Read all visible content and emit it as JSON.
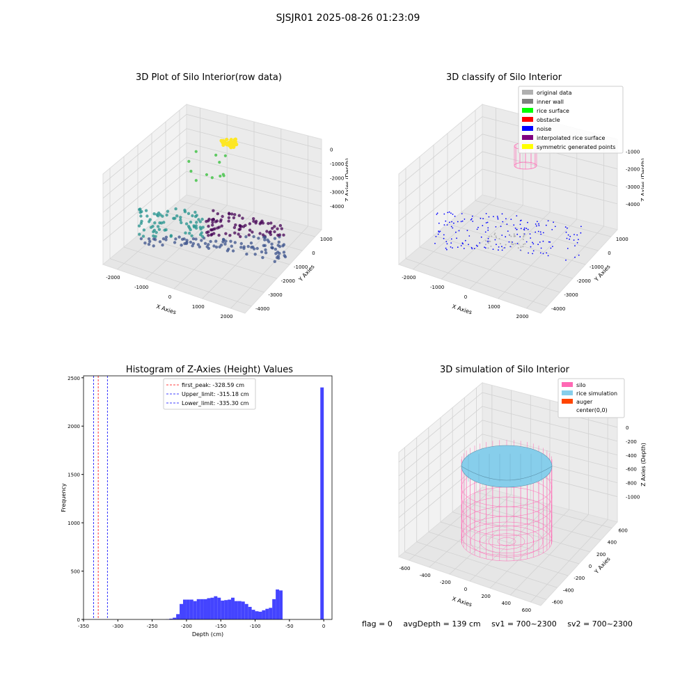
{
  "figure": {
    "suptitle": "SJSJR01 2025-08-26 01:23:09"
  },
  "chart_data": [
    {
      "type": "scatter3d",
      "title": "3D Plot of Silo Interior(row data)",
      "xlabel": "X Axies",
      "ylabel": "Y Axies",
      "zlabel": "Z Axies (Depth)",
      "x_ticks": [
        "-2000",
        "-1000",
        "0",
        "1000",
        "2000"
      ],
      "y_ticks": [
        "1000",
        "0",
        "-1000",
        "-2000",
        "-3000",
        "-4000"
      ],
      "z_ticks": [
        "0",
        "-1000",
        "-2000",
        "-3000",
        "-4000"
      ],
      "colormap": [
        "#440154",
        "#3b528b",
        "#21918c",
        "#5ec962",
        "#fde725"
      ],
      "grid": true
    },
    {
      "type": "scatter3d",
      "title": "3D classify of Silo Interior",
      "xlabel": "X Axies",
      "ylabel": "Y Axies",
      "zlabel": "Z Axies (Depth)",
      "x_ticks": [
        "-2000",
        "-1000",
        "0",
        "1000",
        "2000"
      ],
      "y_ticks": [
        "1000",
        "0",
        "-1000",
        "-2000",
        "-3000",
        "-4000"
      ],
      "z_ticks": [
        "-1000",
        "-2000",
        "-3000",
        "-4000"
      ],
      "legend_placement": "top-right",
      "legend": [
        {
          "name": "original data",
          "color": "#b0b0b0"
        },
        {
          "name": "inner wall",
          "color": "#808080"
        },
        {
          "name": "rice surface",
          "color": "#00ff00"
        },
        {
          "name": "obstacle",
          "color": "#ff0000"
        },
        {
          "name": "noise",
          "color": "#0000ff"
        },
        {
          "name": "interpolated rice surface",
          "color": "#800080"
        },
        {
          "name": "symmetric generated points",
          "color": "#ffff00"
        }
      ],
      "grid": true
    },
    {
      "type": "bar",
      "title": "Histogram of Z-Axies (Height) Values",
      "xlabel": "Depth (cm)",
      "ylabel": "Frequency",
      "xlim": [
        -350,
        12
      ],
      "ylim": [
        0,
        2520
      ],
      "x_ticks": [
        -350,
        -300,
        -250,
        -200,
        -150,
        -100,
        -50,
        0
      ],
      "y_ticks": [
        0,
        500,
        1000,
        1500,
        2000,
        2500
      ],
      "bar_color": "#4444ff",
      "bin_width": 5,
      "bins": [
        {
          "x": -230,
          "y": 3
        },
        {
          "x": -225,
          "y": 8
        },
        {
          "x": -220,
          "y": 18
        },
        {
          "x": -215,
          "y": 55
        },
        {
          "x": -210,
          "y": 160
        },
        {
          "x": -205,
          "y": 205
        },
        {
          "x": -200,
          "y": 205
        },
        {
          "x": -195,
          "y": 205
        },
        {
          "x": -190,
          "y": 190
        },
        {
          "x": -185,
          "y": 210
        },
        {
          "x": -180,
          "y": 210
        },
        {
          "x": -175,
          "y": 210
        },
        {
          "x": -170,
          "y": 220
        },
        {
          "x": -165,
          "y": 225
        },
        {
          "x": -160,
          "y": 240
        },
        {
          "x": -155,
          "y": 225
        },
        {
          "x": -150,
          "y": 195
        },
        {
          "x": -145,
          "y": 200
        },
        {
          "x": -140,
          "y": 205
        },
        {
          "x": -135,
          "y": 225
        },
        {
          "x": -130,
          "y": 190
        },
        {
          "x": -125,
          "y": 190
        },
        {
          "x": -120,
          "y": 185
        },
        {
          "x": -115,
          "y": 160
        },
        {
          "x": -110,
          "y": 130
        },
        {
          "x": -105,
          "y": 100
        },
        {
          "x": -100,
          "y": 85
        },
        {
          "x": -95,
          "y": 80
        },
        {
          "x": -90,
          "y": 95
        },
        {
          "x": -85,
          "y": 110
        },
        {
          "x": -80,
          "y": 120
        },
        {
          "x": -75,
          "y": 210
        },
        {
          "x": -70,
          "y": 310
        },
        {
          "x": -65,
          "y": 300
        },
        {
          "x": -5,
          "y": 2400
        }
      ],
      "vlines": [
        {
          "name": "first_peak: -328.59 cm",
          "x": -328.59,
          "color": "#ff0000"
        },
        {
          "name": "Upper_limit: -315.18 cm",
          "x": -315.18,
          "color": "#0000ff"
        },
        {
          "name": "Lower_limit: -335.30 cm",
          "x": -335.3,
          "color": "#0000ff"
        }
      ],
      "legend_placement": "top-center"
    },
    {
      "type": "surface3d",
      "title": "3D simulation of Silo Interior",
      "xlabel": "X Axies",
      "ylabel": "Y Axies",
      "zlabel": "Z Axies (Depth)",
      "x_ticks": [
        "-600",
        "-400",
        "-200",
        "0",
        "200",
        "400",
        "600"
      ],
      "y_ticks": [
        "600",
        "400",
        "200",
        "0",
        "-200",
        "-400",
        "-600"
      ],
      "z_ticks": [
        "0",
        "-200",
        "-400",
        "-600",
        "-800",
        "-1000"
      ],
      "legend_placement": "top-right",
      "legend": [
        {
          "name": "silo",
          "color": "#ff69b4"
        },
        {
          "name": "rice simulation",
          "color": "#87ceeb"
        },
        {
          "name": "auger",
          "color": "#ff4500"
        },
        {
          "name": "center(0,0)",
          "color": "#ffffff"
        }
      ],
      "grid": true
    }
  ],
  "footer": {
    "flag": "flag = 0",
    "avg": "avgDepth = 139 cm",
    "sv1": "sv1 = 700~2300",
    "sv2": "sv2 = 700~2300"
  }
}
